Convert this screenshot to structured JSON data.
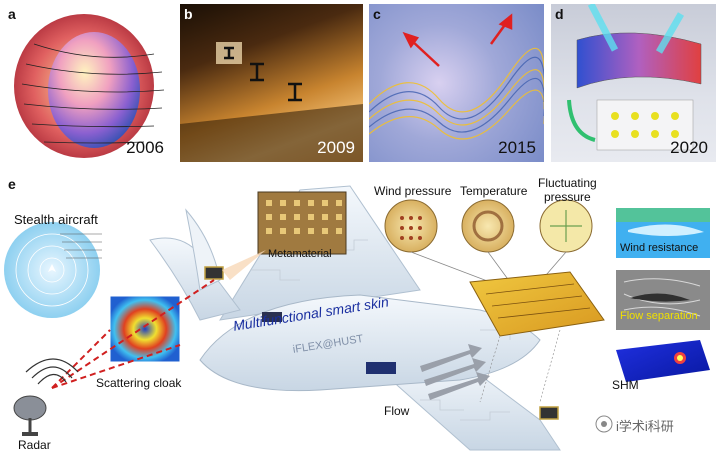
{
  "panels": {
    "a": {
      "label": "a",
      "year": "2006"
    },
    "b": {
      "label": "b",
      "year": "2009"
    },
    "c": {
      "label": "c",
      "year": "2015"
    },
    "d": {
      "label": "d",
      "year": "2020"
    }
  },
  "panel_e": {
    "label": "e",
    "stealth_aircraft": "Stealth aircraft",
    "scattering_cloak": "Scattering cloak",
    "radar": "Radar",
    "metamaterial": "Metamaterial",
    "skin_title": "Multifunctional smart skin",
    "skin_sub": "iFLEX@HUST",
    "wind_pressure": "Wind pressure",
    "temperature": "Temperature",
    "fluctuating_1": "Fluctuating",
    "fluctuating_2": "pressure",
    "wind_resistance": "Wind resistance",
    "flow_separation": "Flow separation",
    "shm": "SHM",
    "flow": "Flow"
  },
  "watermark": "i学术i科研",
  "colors": {
    "blue_text": "#1a2fa0",
    "yellow_label": "#f0e000",
    "cloak_red": "#d02020"
  }
}
